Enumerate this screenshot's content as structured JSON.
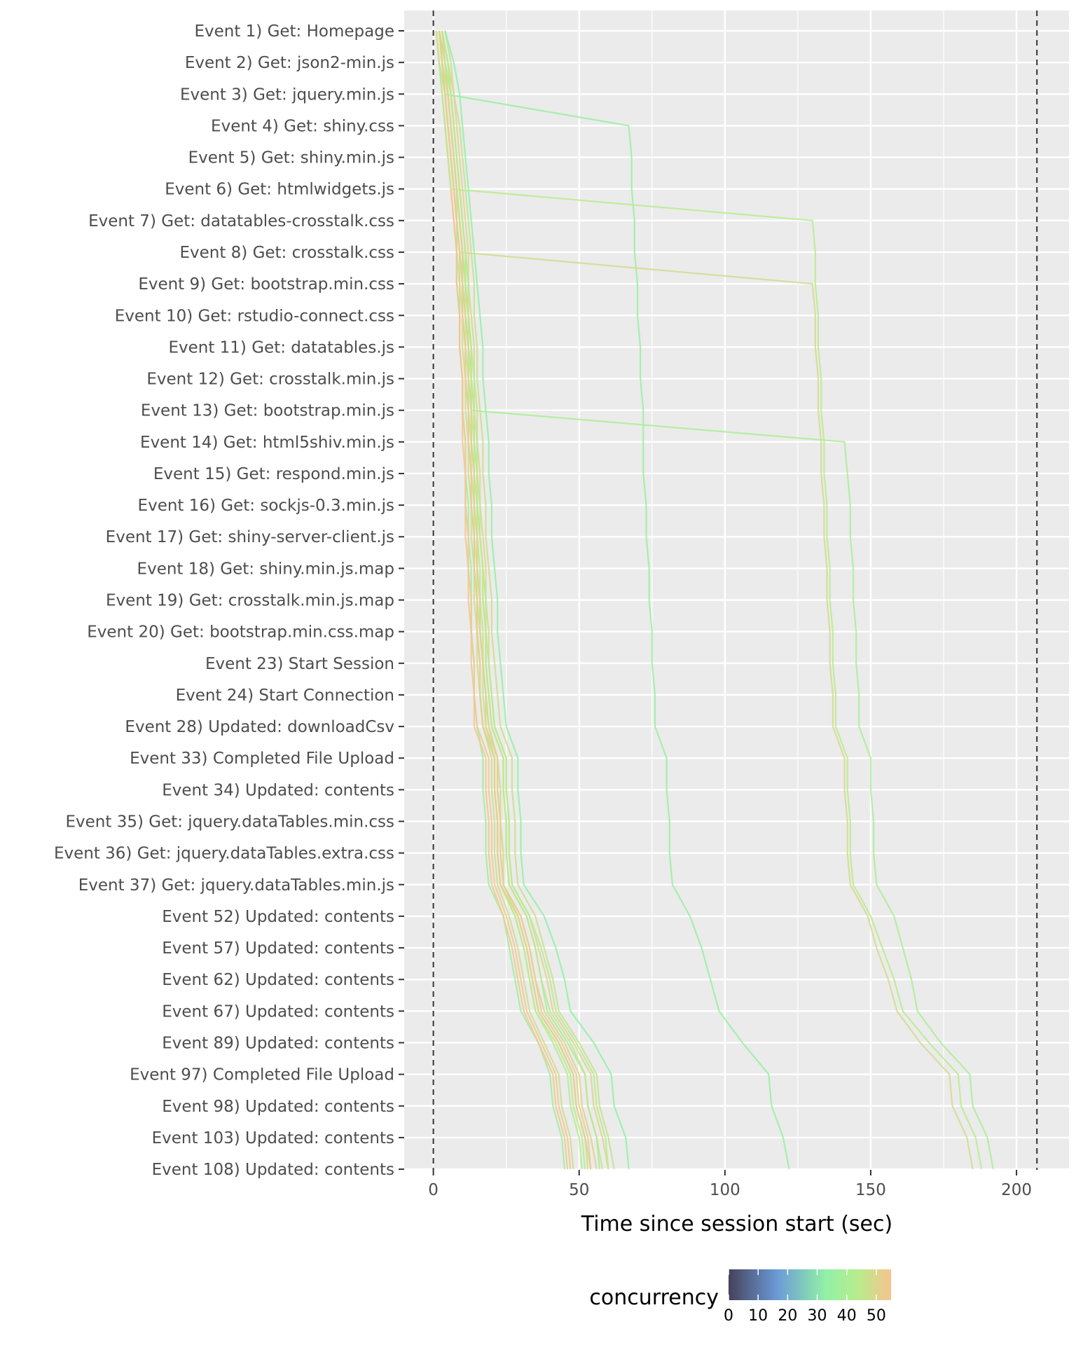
{
  "chart_data": {
    "type": "line",
    "xlabel": "Time since session start (sec)",
    "ylabel": "",
    "xlim": [
      -10,
      218
    ],
    "x_ticks": [
      0,
      50,
      100,
      150,
      200
    ],
    "x_minor_ticks": [
      25,
      75,
      125,
      175
    ],
    "grid": true,
    "vlines": [
      0,
      207
    ],
    "events": [
      "Event 1) Get: Homepage",
      "Event 2) Get: json2-min.js",
      "Event 3) Get: jquery.min.js",
      "Event 4) Get: shiny.css",
      "Event 5) Get: shiny.min.js",
      "Event 6) Get: htmlwidgets.js",
      "Event 7) Get: datatables-crosstalk.css",
      "Event 8) Get: crosstalk.css",
      "Event 9) Get: bootstrap.min.css",
      "Event 10) Get: rstudio-connect.css",
      "Event 11) Get: datatables.js",
      "Event 12) Get: crosstalk.min.js",
      "Event 13) Get: bootstrap.min.js",
      "Event 14) Get: html5shiv.min.js",
      "Event 15) Get: respond.min.js",
      "Event 16) Get: sockjs-0.3.min.js",
      "Event 17) Get: shiny-server-client.js",
      "Event 18) Get: shiny.min.js.map",
      "Event 19) Get: crosstalk.min.js.map",
      "Event 20) Get: bootstrap.min.css.map",
      "Event 23) Start Session",
      "Event 24) Start Connection",
      "Event 28) Updated: downloadCsv",
      "Event 33) Completed File Upload",
      "Event 34) Updated: contents",
      "Event 35) Get: jquery.dataTables.min.css",
      "Event 36) Get: jquery.dataTables.extra.css",
      "Event 37) Get: jquery.dataTables.min.js",
      "Event 52) Updated: contents",
      "Event 57) Updated: contents",
      "Event 62) Updated: contents",
      "Event 67) Updated: contents",
      "Event 89) Updated: contents",
      "Event 97) Completed File Upload",
      "Event 98) Updated: contents",
      "Event 103) Updated: contents",
      "Event 108) Updated: contents"
    ],
    "series": [
      {
        "concurrency": 36,
        "x": [
          1,
          2,
          4,
          5,
          6,
          7,
          8,
          8,
          9,
          9,
          9,
          10,
          10,
          11,
          11,
          12,
          12,
          13,
          13,
          13,
          14,
          14,
          15,
          17,
          17,
          18,
          18,
          19,
          24,
          26,
          28,
          30,
          36,
          40,
          41,
          44,
          45
        ]
      },
      {
        "concurrency": 42,
        "x": [
          2,
          3,
          5,
          6,
          7,
          8,
          9,
          10,
          10,
          11,
          11,
          12,
          12,
          13,
          13,
          14,
          14,
          15,
          15,
          16,
          17,
          17,
          18,
          21,
          21,
          22,
          22,
          23,
          28,
          31,
          33,
          35,
          41,
          46,
          47,
          50,
          51
        ]
      },
      {
        "concurrency": 48,
        "x": [
          2,
          3,
          4,
          5,
          6,
          7,
          8,
          9,
          9,
          10,
          10,
          11,
          11,
          12,
          12,
          13,
          13,
          14,
          14,
          15,
          15,
          16,
          17,
          20,
          20,
          21,
          21,
          22,
          26,
          29,
          31,
          33,
          38,
          43,
          44,
          47,
          48
        ]
      },
      {
        "concurrency": 53,
        "x": [
          1,
          2,
          3,
          4,
          5,
          6,
          7,
          8,
          8,
          9,
          9,
          10,
          10,
          11,
          11,
          11,
          12,
          12,
          13,
          13,
          14,
          14,
          15,
          19,
          19,
          20,
          20,
          21,
          25,
          28,
          30,
          32,
          37,
          42,
          43,
          46,
          47
        ]
      },
      {
        "concurrency": 45,
        "x": [
          3,
          4,
          6,
          7,
          8,
          9,
          10,
          11,
          11,
          12,
          12,
          13,
          13,
          14,
          14,
          15,
          15,
          16,
          16,
          17,
          17,
          18,
          19,
          22,
          22,
          23,
          23,
          24,
          29,
          32,
          34,
          36,
          43,
          48,
          49,
          52,
          53
        ]
      },
      {
        "concurrency": 50,
        "x": [
          2,
          4,
          5,
          6,
          7,
          8,
          9,
          10,
          11,
          11,
          12,
          12,
          13,
          13,
          14,
          14,
          15,
          15,
          16,
          16,
          17,
          18,
          19,
          22,
          23,
          23,
          24,
          24,
          30,
          33,
          35,
          37,
          44,
          49,
          50,
          53,
          54
        ]
      },
      {
        "concurrency": 38,
        "x": [
          3,
          5,
          6,
          7,
          8,
          9,
          10,
          11,
          12,
          12,
          13,
          13,
          14,
          14,
          15,
          15,
          16,
          17,
          17,
          18,
          18,
          19,
          20,
          24,
          24,
          25,
          25,
          26,
          32,
          35,
          37,
          39,
          46,
          52,
          53,
          56,
          57
        ]
      },
      {
        "concurrency": 55,
        "x": [
          1,
          2,
          3,
          4,
          5,
          6,
          7,
          8,
          8,
          9,
          9,
          10,
          10,
          10,
          11,
          11,
          11,
          12,
          12,
          13,
          13,
          14,
          14,
          18,
          18,
          19,
          19,
          20,
          24,
          27,
          29,
          31,
          36,
          41,
          42,
          45,
          46
        ]
      },
      {
        "concurrency": 47,
        "x": [
          4,
          6,
          7,
          9,
          10,
          11,
          12,
          13,
          14,
          14,
          15,
          15,
          16,
          17,
          17,
          18,
          18,
          19,
          20,
          20,
          21,
          22,
          23,
          27,
          27,
          28,
          28,
          29,
          35,
          38,
          41,
          43,
          50,
          56,
          57,
          60,
          62
        ]
      },
      {
        "concurrency": 33,
        "x": [
          4,
          7,
          9,
          10,
          11,
          12,
          13,
          14,
          15,
          16,
          17,
          17,
          18,
          19,
          19,
          20,
          20,
          21,
          22,
          22,
          23,
          24,
          25,
          29,
          29,
          30,
          30,
          31,
          38,
          42,
          45,
          47,
          55,
          61,
          62,
          66,
          67
        ]
      },
      {
        "concurrency": 51,
        "x": [
          3,
          5,
          7,
          8,
          9,
          10,
          11,
          12,
          12,
          13,
          14,
          14,
          15,
          15,
          16,
          16,
          17,
          18,
          18,
          19,
          19,
          20,
          21,
          25,
          25,
          26,
          26,
          27,
          33,
          36,
          39,
          41,
          48,
          54,
          55,
          58,
          60
        ]
      },
      {
        "concurrency": 44,
        "x": [
          2,
          3,
          5,
          6,
          7,
          8,
          8,
          9,
          10,
          10,
          11,
          11,
          12,
          12,
          13,
          13,
          14,
          14,
          15,
          15,
          16,
          16,
          17,
          21,
          21,
          22,
          22,
          23,
          28,
          31,
          33,
          35,
          42,
          47,
          48,
          51,
          52
        ]
      },
      {
        "concurrency": 35,
        "x": [
          2,
          3,
          4,
          67,
          68,
          68,
          69,
          69,
          70,
          70,
          71,
          71,
          72,
          72,
          72,
          73,
          73,
          74,
          74,
          75,
          75,
          76,
          76,
          80,
          80,
          81,
          81,
          82,
          88,
          92,
          95,
          98,
          106,
          115,
          116,
          120,
          122
        ]
      },
      {
        "concurrency": 44,
        "x": [
          1,
          2,
          3,
          4,
          5,
          6,
          130,
          131,
          131,
          132,
          132,
          133,
          133,
          134,
          134,
          135,
          135,
          136,
          136,
          137,
          137,
          138,
          138,
          142,
          142,
          143,
          143,
          144,
          150,
          154,
          158,
          161,
          170,
          180,
          181,
          186,
          188
        ]
      },
      {
        "concurrency": 49,
        "x": [
          2,
          3,
          4,
          5,
          6,
          7,
          8,
          9,
          130,
          131,
          131,
          132,
          132,
          133,
          133,
          134,
          134,
          135,
          135,
          136,
          136,
          137,
          137,
          141,
          141,
          142,
          142,
          143,
          149,
          152,
          156,
          159,
          167,
          177,
          178,
          183,
          185
        ]
      },
      {
        "concurrency": 40,
        "x": [
          2,
          4,
          5,
          6,
          7,
          8,
          9,
          10,
          11,
          12,
          12,
          13,
          13,
          141,
          142,
          143,
          143,
          144,
          144,
          145,
          145,
          146,
          146,
          150,
          150,
          151,
          151,
          152,
          158,
          161,
          164,
          166,
          174,
          184,
          185,
          190,
          192
        ]
      },
      {
        "concurrency": 43,
        "x": [
          3,
          5,
          6,
          7,
          8,
          9,
          10,
          11,
          12,
          12,
          13,
          14,
          14,
          15,
          15,
          16,
          16,
          17,
          18,
          18,
          19,
          20,
          21,
          25,
          25,
          26,
          26,
          27,
          33,
          37,
          40,
          42,
          49,
          55,
          56,
          59,
          60
        ]
      },
      {
        "concurrency": 52,
        "x": [
          2,
          4,
          5,
          6,
          7,
          8,
          9,
          10,
          10,
          11,
          12,
          12,
          13,
          13,
          14,
          14,
          15,
          15,
          16,
          16,
          17,
          18,
          18,
          22,
          22,
          23,
          23,
          24,
          30,
          33,
          35,
          38,
          45,
          50,
          51,
          54,
          56
        ]
      },
      {
        "concurrency": 46,
        "x": [
          3,
          4,
          6,
          7,
          8,
          9,
          10,
          11,
          11,
          12,
          13,
          13,
          14,
          14,
          15,
          15,
          16,
          17,
          17,
          18,
          18,
          19,
          20,
          24,
          24,
          25,
          25,
          26,
          32,
          35,
          37,
          40,
          47,
          52,
          53,
          56,
          58
        ]
      },
      {
        "concurrency": 54,
        "x": [
          2,
          3,
          4,
          5,
          6,
          7,
          8,
          9,
          10,
          10,
          11,
          11,
          12,
          12,
          13,
          13,
          14,
          14,
          15,
          15,
          16,
          16,
          17,
          21,
          21,
          22,
          22,
          23,
          29,
          32,
          34,
          36,
          43,
          48,
          49,
          52,
          54
        ]
      }
    ],
    "legend": {
      "title": "concurrency",
      "ticks": [
        0,
        10,
        20,
        30,
        40,
        50
      ],
      "range": [
        0,
        55
      ],
      "position": "bottom"
    }
  }
}
